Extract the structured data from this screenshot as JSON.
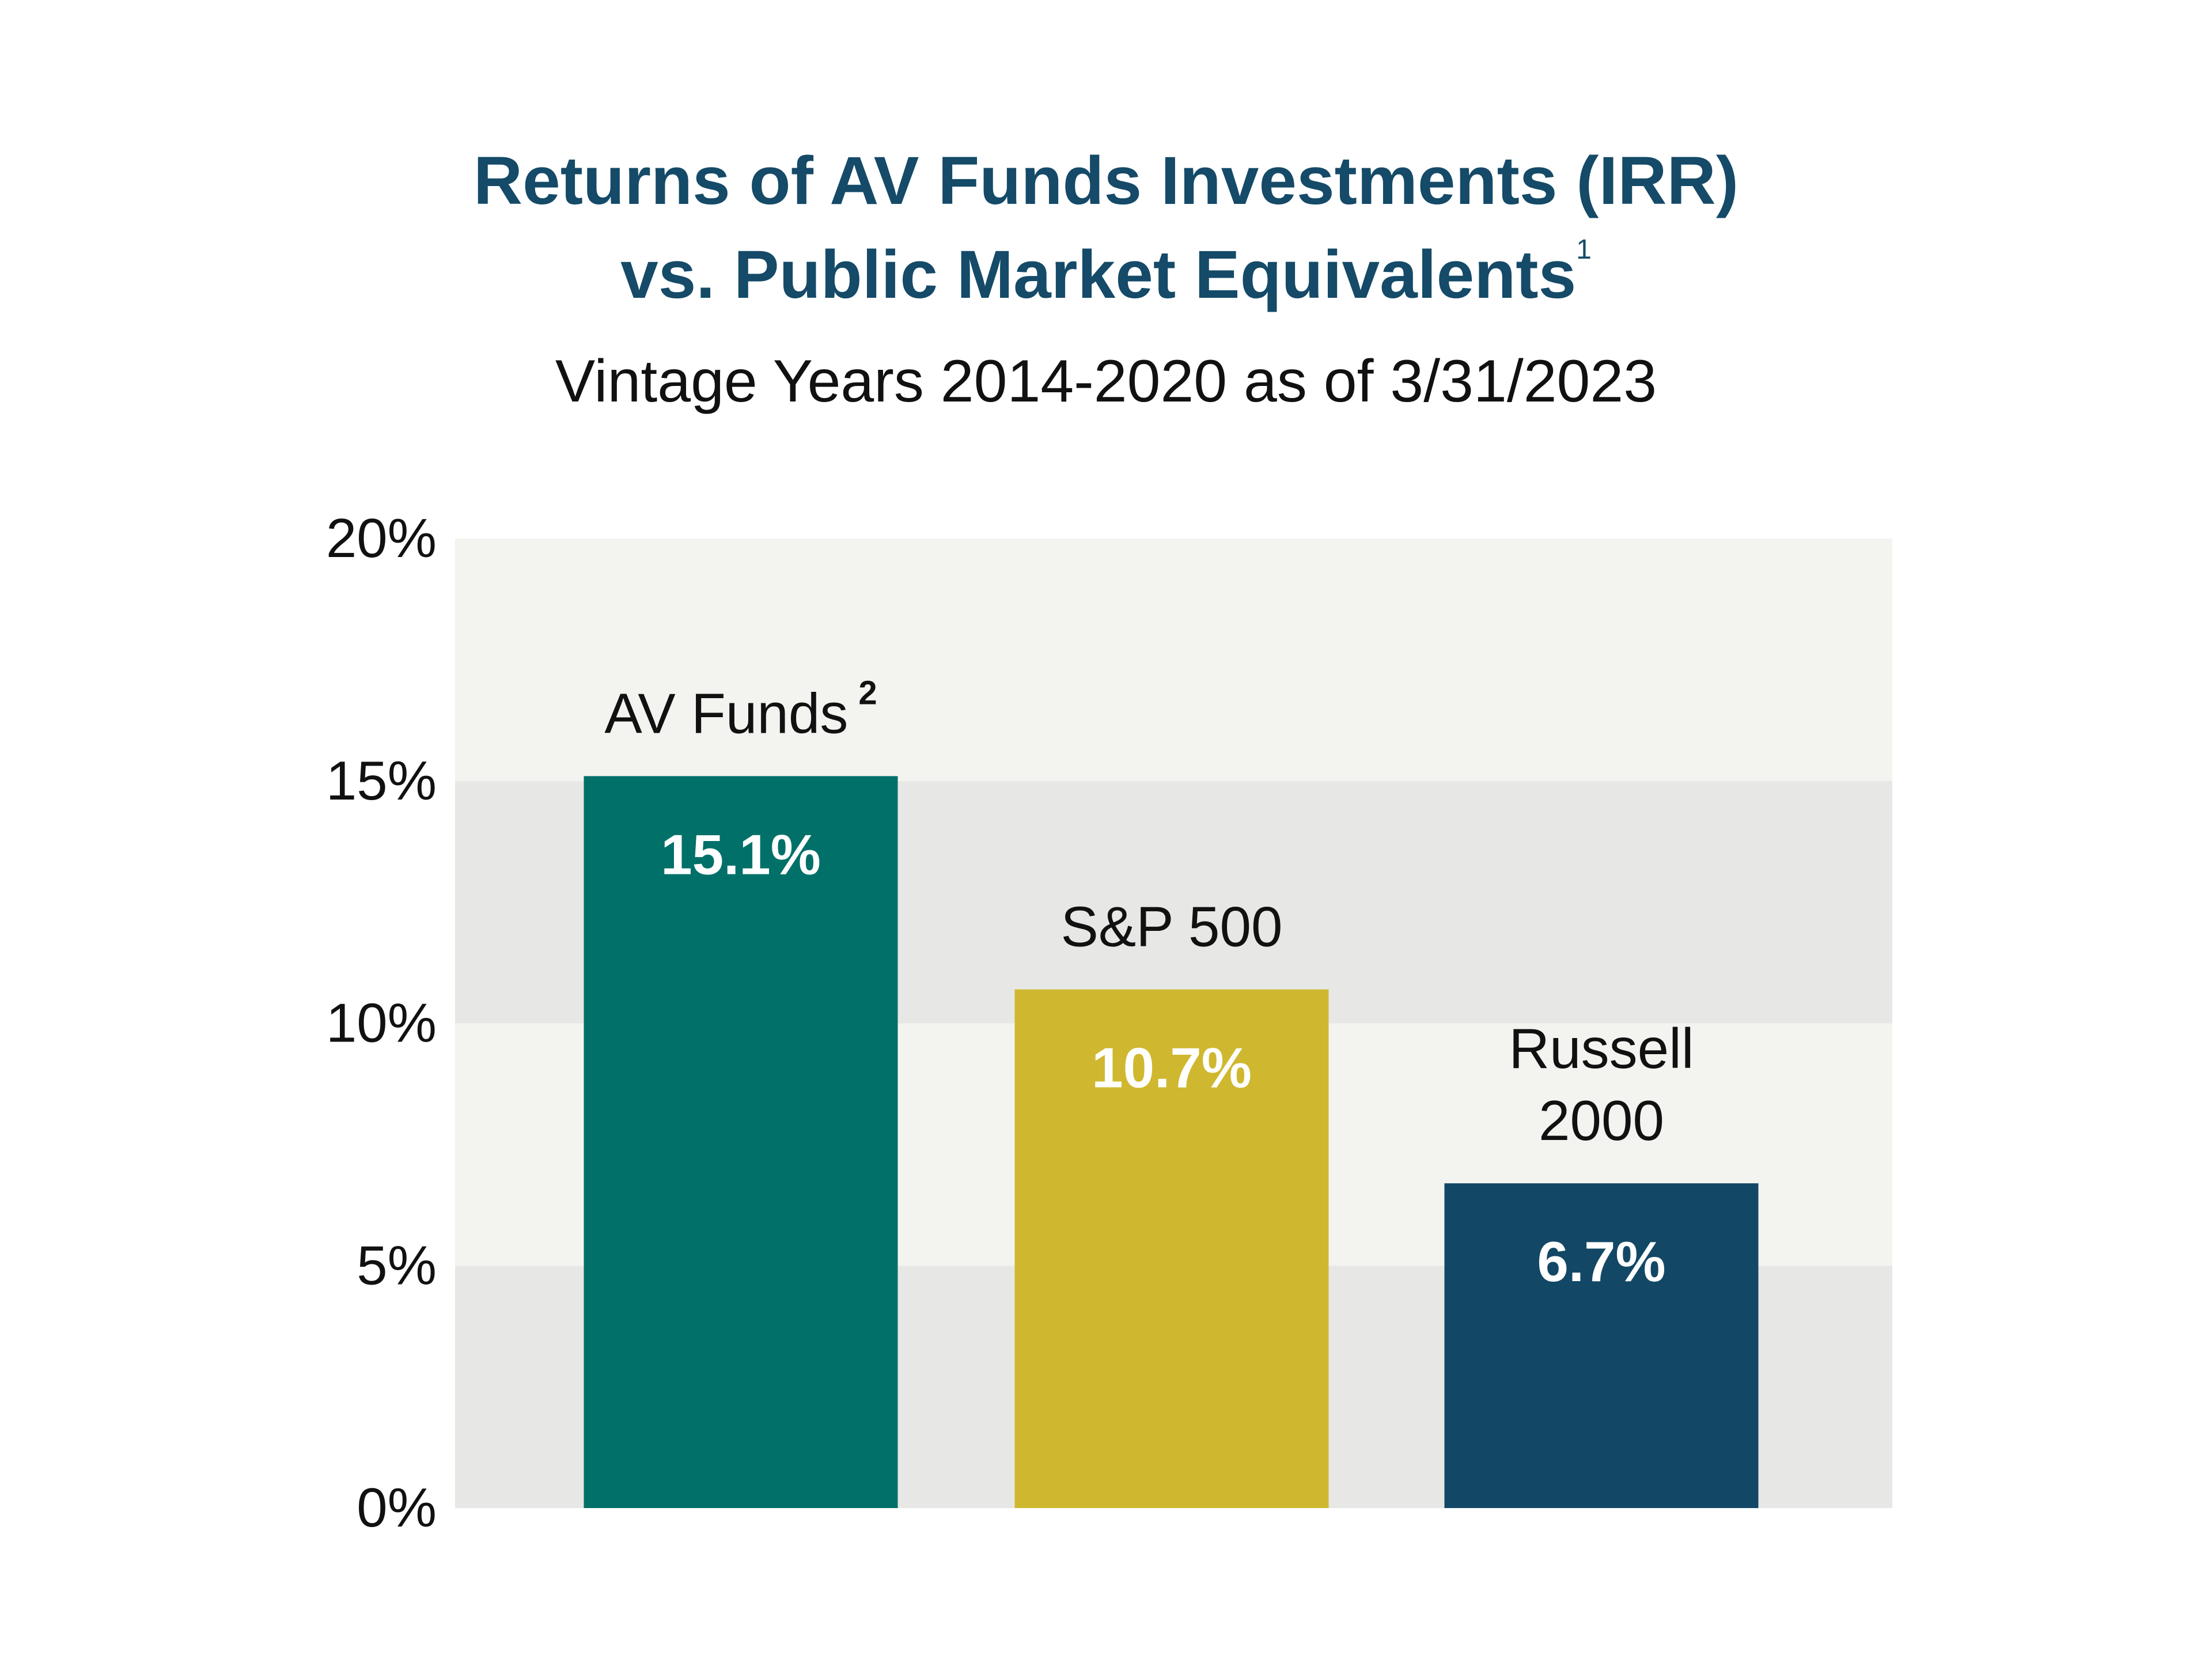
{
  "title": {
    "line1": "Returns of AV Funds Investments (IRR)",
    "line2": "vs. Public Market Equivalents",
    "footnote": "1"
  },
  "subtitle": "Vintage Years 2014-2020 as of 3/31/2023",
  "chart_data": {
    "type": "bar",
    "title": "Returns of AV Funds Investments (IRR) vs. Public Market Equivalents",
    "subtitle": "Vintage Years 2014-2020 as of 3/31/2023",
    "xlabel": "",
    "ylabel": "",
    "ylim": [
      0,
      20
    ],
    "yticks": [
      0,
      5,
      10,
      15,
      20
    ],
    "ytick_labels": [
      "0%",
      "5%",
      "10%",
      "15%",
      "20%"
    ],
    "grid": "alternating horizontal bands",
    "band_colors": [
      "#e7e7e5",
      "#f3f4f0"
    ],
    "bars": [
      {
        "category": "AV Funds",
        "category_lines": [
          "AV Funds"
        ],
        "footnote": "2",
        "value": 15.1,
        "label": "15.1%",
        "color": "#017069"
      },
      {
        "category": "S&P 500",
        "category_lines": [
          "S&P 500"
        ],
        "footnote": "",
        "value": 10.7,
        "label": "10.7%",
        "color": "#cfb82f"
      },
      {
        "category": "Russell 2000",
        "category_lines": [
          "Russell",
          "2000"
        ],
        "footnote": "",
        "value": 6.7,
        "label": "6.7%",
        "color": "#124866"
      }
    ]
  },
  "colors": {
    "title": "#154a68",
    "text": "#111111",
    "value_label": "#ffffff"
  }
}
